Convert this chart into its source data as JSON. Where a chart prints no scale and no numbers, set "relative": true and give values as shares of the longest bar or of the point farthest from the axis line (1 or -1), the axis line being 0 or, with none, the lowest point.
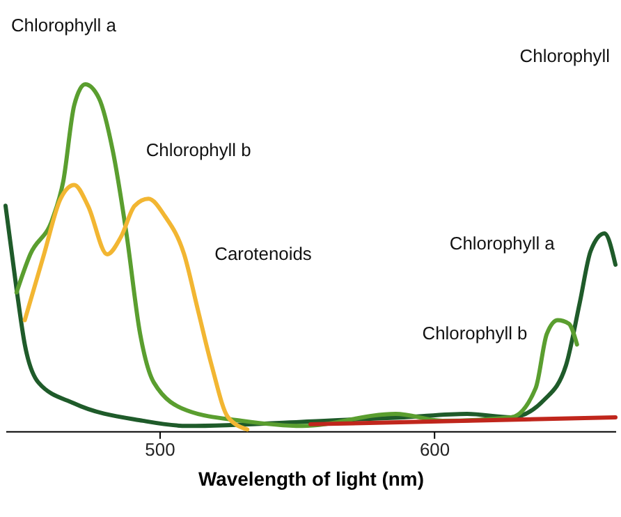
{
  "chart_data": {
    "type": "line",
    "relative": true,
    "xlabel": "Wavelength of light (nm)",
    "xlim": [
      444,
      666
    ],
    "xticks": [
      500,
      600
    ],
    "tick_labels": "x",
    "series": [
      {
        "color": "#1f5b2a",
        "x": [
          444,
          448,
          451,
          456,
          469,
          494,
          510,
          560,
          589,
          612,
          628,
          640,
          648,
          653,
          657,
          662,
          666
        ],
        "values": [
          0.65,
          0.41,
          0.25,
          0.14,
          0.08,
          0.03,
          0.015,
          0.03,
          0.04,
          0.05,
          0.04,
          0.09,
          0.19,
          0.37,
          0.52,
          0.57,
          0.48
        ]
      },
      {
        "color": "#5a9e2f",
        "x": [
          448,
          453,
          461,
          465,
          469,
          473,
          478,
          483,
          488,
          493,
          498,
          510,
          530,
          552,
          586,
          603,
          628,
          637,
          641,
          645,
          649,
          652
        ],
        "values": [
          0.4,
          0.51,
          0.61,
          0.72,
          0.94,
          1.0,
          0.96,
          0.81,
          0.57,
          0.28,
          0.14,
          0.06,
          0.03,
          0.015,
          0.05,
          0.03,
          0.04,
          0.125,
          0.28,
          0.32,
          0.31,
          0.25
        ]
      },
      {
        "color": "#f2b632",
        "x": [
          451,
          458,
          464,
          469,
          474,
          481,
          486,
          491,
          496,
          502,
          509,
          514,
          519,
          525,
          532
        ],
        "values": [
          0.32,
          0.51,
          0.67,
          0.71,
          0.65,
          0.51,
          0.56,
          0.65,
          0.67,
          0.62,
          0.51,
          0.35,
          0.19,
          0.04,
          0.005
        ]
      },
      {
        "color": "#c0261c",
        "x": [
          555,
          666
        ],
        "values": [
          0.02,
          0.04
        ]
      }
    ],
    "annotations": [
      "Chlorophyll a",
      {
        "text": "Chlorophyll b",
        "x": 483,
        "y": 0.81
      },
      {
        "text": "Carotenoids",
        "x": 509,
        "y": 0.51
      },
      "Chlorophyll",
      {
        "text": "Chlorophyll a",
        "x": 657,
        "y": 0.54
      },
      {
        "text": "Chlorophyll b",
        "x": 641,
        "y": 0.28
      }
    ]
  }
}
